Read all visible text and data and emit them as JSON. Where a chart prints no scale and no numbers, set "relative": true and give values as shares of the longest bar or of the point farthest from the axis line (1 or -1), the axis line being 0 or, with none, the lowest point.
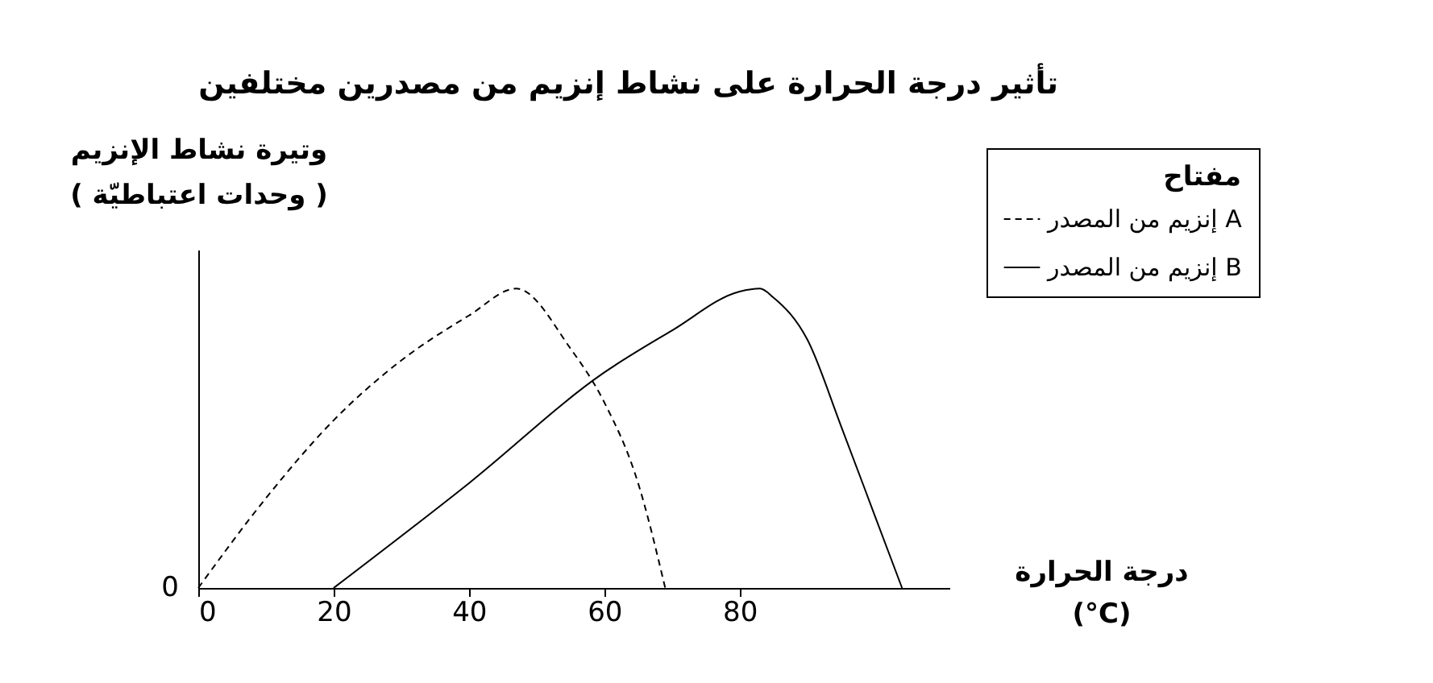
{
  "chart_data": {
    "type": "line",
    "title": "تأثير درجة الحرارة على نشاط إنزيم من مصدرين مختلفين",
    "xlabel": "درجة الحرارة\n(°C)",
    "ylabel": "وتيرة نشاط الإنزيم\n( وحدات اعتباطيّة )",
    "relative": true,
    "xlim": [
      0,
      111
    ],
    "xticks": [
      0,
      20,
      40,
      60,
      80
    ],
    "grid": false,
    "legend": "top right",
    "legend_title": "مفتاح",
    "annotations": [
      "0"
    ],
    "series": [
      {
        "name": "إنزيم من المصدر A",
        "color": "#000000",
        "line_style": "dashed",
        "x": [
          0,
          10,
          20,
          30,
          40,
          47,
          55,
          60,
          65,
          69
        ],
        "values": [
          0,
          0.3,
          0.56,
          0.76,
          0.91,
          1,
          0.8,
          0.62,
          0.35,
          0
        ]
      },
      {
        "name": "إنزيم من المصدر B",
        "color": "#000000",
        "line_style": "solid",
        "x": [
          20,
          40,
          60,
          70,
          80,
          83,
          85,
          90,
          95,
          100,
          104
        ],
        "values": [
          0,
          0.35,
          0.72,
          0.86,
          0.99,
          1,
          0.97,
          0.83,
          0.54,
          0.24,
          0
        ]
      }
    ]
  }
}
